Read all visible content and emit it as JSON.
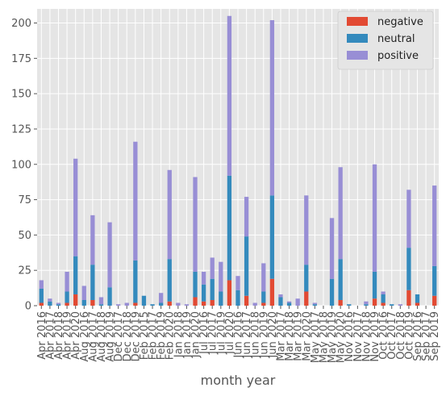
{
  "chart_data": {
    "type": "bar",
    "stacked": true,
    "grid": true,
    "legend_position": "top-right",
    "xlabel": "month year",
    "ylabel": "",
    "ylim": [
      0,
      210
    ],
    "yticks": [
      0,
      25,
      50,
      75,
      100,
      125,
      150,
      175,
      200
    ],
    "categories": [
      "Apr 2016",
      "Apr 2017",
      "Apr 2018",
      "Apr 2019",
      "Apr 2020",
      "Aug 2016",
      "Aug 2017",
      "Aug 2018",
      "Aug 2019",
      "Dec 2017",
      "Dec 2018",
      "Dec 2019",
      "Feb 2015",
      "Feb 2017",
      "Feb 2019",
      "Feb 2020",
      "Jan 2018",
      "Jan 2019",
      "Jan 2020",
      "Jul 2016",
      "Jul 2017",
      "Jul 2019",
      "Jul 2020",
      "Jun 2016",
      "Jun 2017",
      "Jun 2018",
      "Jun 2019",
      "Jun 2020",
      "Mar 2017",
      "Mar 2018",
      "Mar 2019",
      "Mar 2020",
      "May 2017",
      "May 2018",
      "May 2019",
      "May 2020",
      "Nov 2016",
      "Nov 2017",
      "Nov 2018",
      "Nov 2019",
      "Oct 2016",
      "Oct 2017",
      "Oct 2018",
      "Oct 2019",
      "Sep 2016",
      "Sep 2017",
      "Sep 2019"
    ],
    "series": [
      {
        "name": "negative",
        "color": "#e24a33",
        "values": [
          2,
          0,
          0,
          2,
          8,
          0,
          4,
          0,
          0,
          0,
          0,
          2,
          0,
          0,
          0,
          3,
          0,
          0,
          6,
          3,
          4,
          0,
          18,
          0,
          7,
          0,
          2,
          19,
          0,
          0,
          0,
          10,
          0,
          0,
          0,
          4,
          0,
          0,
          0,
          5,
          2,
          0,
          0,
          11,
          2,
          0,
          7
        ]
      },
      {
        "name": "neutral",
        "color": "#348abd",
        "values": [
          10,
          3,
          1,
          8,
          27,
          4,
          25,
          1,
          13,
          0,
          0,
          30,
          7,
          1,
          2,
          30,
          0,
          0,
          18,
          12,
          15,
          10,
          74,
          11,
          42,
          0,
          8,
          59,
          6,
          2,
          0,
          19,
          1,
          0,
          19,
          29,
          1,
          0,
          1,
          19,
          6,
          1,
          0,
          30,
          6,
          0,
          21
        ]
      },
      {
        "name": "positive",
        "color": "#988ed5",
        "values": [
          6,
          2,
          1,
          14,
          69,
          10,
          35,
          5,
          46,
          1,
          2,
          84,
          0,
          0,
          7,
          63,
          2,
          1,
          67,
          9,
          15,
          21,
          113,
          10,
          28,
          2,
          20,
          124,
          2,
          1,
          5,
          49,
          1,
          0,
          43,
          65,
          0,
          0,
          2,
          76,
          2,
          0,
          1,
          41,
          0,
          0,
          57
        ]
      }
    ]
  }
}
